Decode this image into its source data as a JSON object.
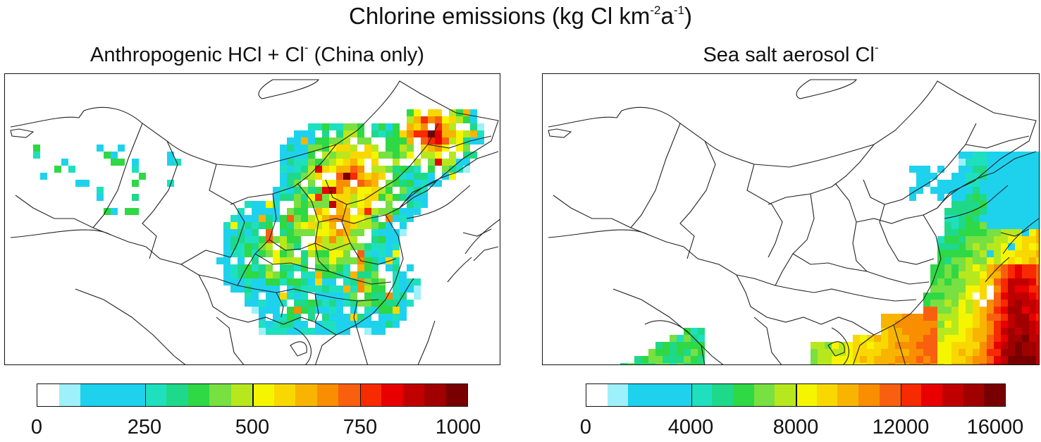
{
  "figure": {
    "title_main": "Chlorine emissions (kg Cl km",
    "title_sup1": "-2",
    "title_mid": "a",
    "title_sup2": "-1",
    "title_end": ")"
  },
  "panels": [
    {
      "id": "left",
      "title_main": "Anthropogenic HCl + Cl",
      "title_sup": "-",
      "title_tail": " (China only)",
      "colorbar": {
        "ticks": [
          "0",
          "250",
          "500",
          "750",
          "1000"
        ],
        "range": [
          0,
          1000
        ]
      }
    },
    {
      "id": "right",
      "title_main": "Sea salt aerosol Cl",
      "title_sup": "-",
      "colorbar": {
        "ticks": [
          "0",
          "4000",
          "8000",
          "12000",
          "16000"
        ],
        "range": [
          0,
          16000
        ]
      }
    }
  ],
  "colormap": [
    "#ffffff",
    "#9ef0fa",
    "#1ed2ee",
    "#1ed2ee",
    "#1ed2ee",
    "#1ee0bf",
    "#1ed98a",
    "#2fd845",
    "#78e040",
    "#b7e81e",
    "#f5f500",
    "#f8d800",
    "#f8b400",
    "#f88e00",
    "#f86010",
    "#f82a00",
    "#e80000",
    "#c00000",
    "#a00000",
    "#780000"
  ]
}
